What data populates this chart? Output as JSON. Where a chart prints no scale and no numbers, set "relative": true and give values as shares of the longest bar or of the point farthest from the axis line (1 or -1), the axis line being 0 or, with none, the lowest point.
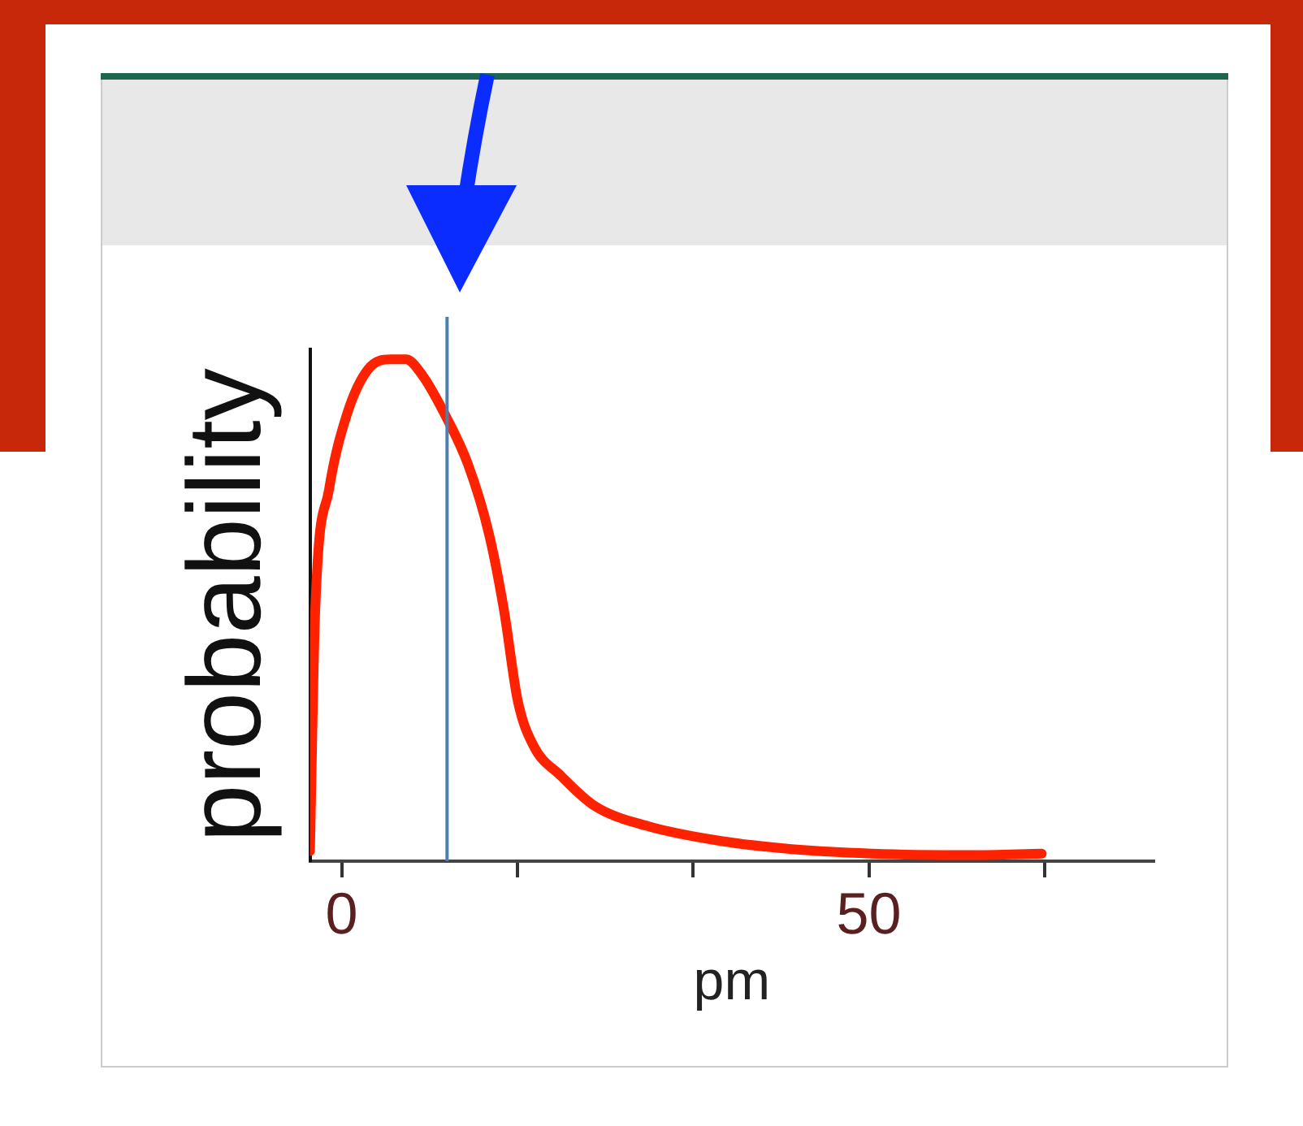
{
  "chart_data": {
    "type": "line",
    "xlabel": "pm",
    "ylabel": "probability",
    "relative": true,
    "x": [
      -3,
      -2.5,
      -1.2,
      0.5,
      2.5,
      4.7,
      6.1,
      7.6,
      9.8,
      12,
      14,
      15.4,
      16.7,
      18.2,
      20.8,
      24,
      29,
      36,
      42.7,
      50.3,
      59.6,
      66.4
    ],
    "series": [
      {
        "color": "#ff2200",
        "values": [
          0.02,
          0.5,
          0.74,
          0.89,
          0.98,
          1.0,
          1.0,
          0.97,
          0.89,
          0.79,
          0.65,
          0.5,
          0.32,
          0.23,
          0.17,
          0.11,
          0.07,
          0.04,
          0.024,
          0.015,
          0.012,
          0.015
        ]
      }
    ],
    "xlim": [
      -3,
      77
    ],
    "xticks": [
      0,
      {
        "value": 16.7,
        "label": null
      },
      {
        "value": 33.3,
        "label": null
      },
      50,
      {
        "value": 66.7,
        "label": null
      }
    ],
    "ref_lines": [
      {
        "axis": "x",
        "value": 10,
        "color": "#4a7fb0"
      }
    ],
    "grid": false,
    "legend": false,
    "marker": "none",
    "line_style": "solid"
  }
}
